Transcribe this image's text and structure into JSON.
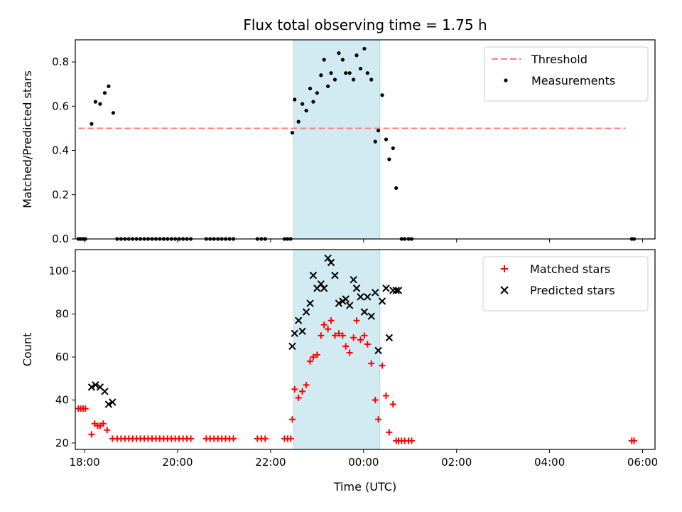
{
  "figure": {
    "title": "Flux total observing time = 1.75 h",
    "shade_color": "#add8e6"
  },
  "chart_data": [
    {
      "type": "scatter",
      "title": "Flux total observing time = 1.75 h",
      "ylabel": "Matched/Predicted stars",
      "xlabel": "",
      "xlim": [
        "17:48",
        "30:16"
      ],
      "ylim": [
        0,
        0.9
      ],
      "yticks": [
        0.0,
        0.2,
        0.4,
        0.6,
        0.8
      ],
      "ytick_labels": [
        "0.0",
        "0.2",
        "0.4",
        "0.6",
        "0.8"
      ],
      "shaded_span": [
        "22:30",
        "00:21"
      ],
      "legend_position": "top-right",
      "threshold": {
        "name": "Threshold",
        "value": 0.5,
        "x_range": [
          "17:52",
          "29:38"
        ],
        "color": "#ff7f7f",
        "style": "dashed"
      },
      "series": [
        {
          "name": "Measurements",
          "color": "#000000",
          "marker": "dot",
          "points": [
            [
              "17:52",
              0
            ],
            [
              "17:55",
              0
            ],
            [
              "17:58",
              0
            ],
            [
              "18:01",
              0
            ],
            [
              "18:09",
              0.52
            ],
            [
              "18:14",
              0.62
            ],
            [
              "18:20",
              0.61
            ],
            [
              "18:26",
              0.66
            ],
            [
              "18:31",
              0.69
            ],
            [
              "18:37",
              0.57
            ],
            [
              "18:42",
              0
            ],
            [
              "18:47",
              0
            ],
            [
              "18:52",
              0
            ],
            [
              "18:57",
              0
            ],
            [
              "19:02",
              0
            ],
            [
              "19:07",
              0
            ],
            [
              "19:12",
              0
            ],
            [
              "19:17",
              0
            ],
            [
              "19:22",
              0
            ],
            [
              "19:27",
              0
            ],
            [
              "19:32",
              0
            ],
            [
              "19:37",
              0
            ],
            [
              "19:42",
              0
            ],
            [
              "19:47",
              0
            ],
            [
              "19:52",
              0
            ],
            [
              "19:57",
              0
            ],
            [
              "20:02",
              0
            ],
            [
              "20:07",
              0
            ],
            [
              "20:12",
              0
            ],
            [
              "20:17",
              0
            ],
            [
              "20:37",
              0
            ],
            [
              "20:42",
              0
            ],
            [
              "20:47",
              0
            ],
            [
              "20:52",
              0
            ],
            [
              "20:57",
              0
            ],
            [
              "21:02",
              0
            ],
            [
              "21:07",
              0
            ],
            [
              "21:12",
              0
            ],
            [
              "21:43",
              0
            ],
            [
              "21:48",
              0
            ],
            [
              "21:53",
              0
            ],
            [
              "22:18",
              0
            ],
            [
              "22:22",
              0
            ],
            [
              "22:26",
              0
            ],
            [
              "22:28",
              0.48
            ],
            [
              "22:31",
              0.63
            ],
            [
              "22:36",
              0.53
            ],
            [
              "22:41",
              0.61
            ],
            [
              "22:46",
              0.58
            ],
            [
              "22:51",
              0.68
            ],
            [
              "22:55",
              0.62
            ],
            [
              "23:00",
              0.66
            ],
            [
              "23:05",
              0.74
            ],
            [
              "23:09",
              0.81
            ],
            [
              "23:14",
              0.69
            ],
            [
              "23:18",
              0.75
            ],
            [
              "23:23",
              0.72
            ],
            [
              "23:28",
              0.84
            ],
            [
              "23:33",
              0.81
            ],
            [
              "23:37",
              0.75
            ],
            [
              "23:42",
              0.75
            ],
            [
              "23:47",
              0.72
            ],
            [
              "23:51",
              0.83
            ],
            [
              "23:56",
              0.77
            ],
            [
              "00:01",
              0.86
            ],
            [
              "00:05",
              0.75
            ],
            [
              "00:10",
              0.72
            ],
            [
              "00:15",
              0.44
            ],
            [
              "00:19",
              0.49
            ],
            [
              "00:24",
              0.65
            ],
            [
              "00:29",
              0.45
            ],
            [
              "00:33",
              0.36
            ],
            [
              "00:38",
              0.41
            ],
            [
              "00:42",
              0.23
            ],
            [
              "00:49",
              0
            ],
            [
              "00:53",
              0
            ],
            [
              "00:58",
              0
            ],
            [
              "01:02",
              0
            ],
            [
              "05:46",
              0
            ],
            [
              "05:49",
              0
            ]
          ]
        }
      ]
    },
    {
      "type": "scatter",
      "title": "",
      "ylabel": "Count",
      "xlabel": "Time (UTC)",
      "xlim": [
        "17:48",
        "30:16"
      ],
      "ylim": [
        17,
        110
      ],
      "yticks": [
        20,
        40,
        60,
        80,
        100
      ],
      "ytick_labels": [
        "20",
        "40",
        "60",
        "80",
        "100"
      ],
      "xticks": [
        "18:00",
        "20:00",
        "22:00",
        "00:00",
        "02:00",
        "04:00",
        "06:00"
      ],
      "xtick_labels": [
        "18:00",
        "20:00",
        "22:00",
        "00:00",
        "02:00",
        "04:00",
        "06:00"
      ],
      "shaded_span": [
        "22:30",
        "00:21"
      ],
      "legend_position": "top-right",
      "series": [
        {
          "name": "Matched stars",
          "color": "#ff0000",
          "marker": "plus",
          "points": [
            [
              "17:52",
              36
            ],
            [
              "17:55",
              36
            ],
            [
              "17:58",
              36
            ],
            [
              "18:01",
              36
            ],
            [
              "18:09",
              24
            ],
            [
              "18:13",
              29
            ],
            [
              "18:17",
              28
            ],
            [
              "18:20",
              28
            ],
            [
              "18:24",
              29
            ],
            [
              "18:29",
              26
            ],
            [
              "18:36",
              22
            ],
            [
              "18:42",
              22
            ],
            [
              "18:47",
              22
            ],
            [
              "18:52",
              22
            ],
            [
              "18:57",
              22
            ],
            [
              "19:02",
              22
            ],
            [
              "19:07",
              22
            ],
            [
              "19:12",
              22
            ],
            [
              "19:17",
              22
            ],
            [
              "19:22",
              22
            ],
            [
              "19:27",
              22
            ],
            [
              "19:32",
              22
            ],
            [
              "19:37",
              22
            ],
            [
              "19:42",
              22
            ],
            [
              "19:47",
              22
            ],
            [
              "19:52",
              22
            ],
            [
              "19:57",
              22
            ],
            [
              "20:02",
              22
            ],
            [
              "20:07",
              22
            ],
            [
              "20:12",
              22
            ],
            [
              "20:17",
              22
            ],
            [
              "20:37",
              22
            ],
            [
              "20:42",
              22
            ],
            [
              "20:47",
              22
            ],
            [
              "20:52",
              22
            ],
            [
              "20:57",
              22
            ],
            [
              "21:02",
              22
            ],
            [
              "21:07",
              22
            ],
            [
              "21:12",
              22
            ],
            [
              "21:43",
              22
            ],
            [
              "21:48",
              22
            ],
            [
              "21:53",
              22
            ],
            [
              "22:18",
              22
            ],
            [
              "22:22",
              22
            ],
            [
              "22:26",
              22
            ],
            [
              "22:28",
              31
            ],
            [
              "22:31",
              45
            ],
            [
              "22:36",
              41
            ],
            [
              "22:41",
              44
            ],
            [
              "22:46",
              47
            ],
            [
              "22:51",
              58
            ],
            [
              "22:55",
              60
            ],
            [
              "23:00",
              61
            ],
            [
              "23:05",
              70
            ],
            [
              "23:09",
              75
            ],
            [
              "23:14",
              73
            ],
            [
              "23:18",
              77
            ],
            [
              "23:23",
              70
            ],
            [
              "23:28",
              71
            ],
            [
              "23:33",
              70
            ],
            [
              "23:37",
              65
            ],
            [
              "23:42",
              62
            ],
            [
              "23:47",
              69
            ],
            [
              "23:51",
              77
            ],
            [
              "23:56",
              68
            ],
            [
              "00:01",
              70
            ],
            [
              "00:05",
              66
            ],
            [
              "00:10",
              57
            ],
            [
              "00:15",
              40
            ],
            [
              "00:19",
              31
            ],
            [
              "00:24",
              56
            ],
            [
              "00:29",
              42
            ],
            [
              "00:33",
              25
            ],
            [
              "00:38",
              38
            ],
            [
              "00:42",
              21
            ],
            [
              "00:45",
              21
            ],
            [
              "00:49",
              21
            ],
            [
              "00:53",
              21
            ],
            [
              "00:58",
              21
            ],
            [
              "01:02",
              21
            ],
            [
              "05:46",
              21
            ],
            [
              "05:49",
              21
            ]
          ]
        },
        {
          "name": "Predicted stars",
          "color": "#000000",
          "marker": "x",
          "points": [
            [
              "18:09",
              46
            ],
            [
              "18:14",
              47
            ],
            [
              "18:20",
              46
            ],
            [
              "18:26",
              44
            ],
            [
              "18:31",
              38
            ],
            [
              "18:36",
              39
            ],
            [
              "22:28",
              65
            ],
            [
              "22:31",
              71
            ],
            [
              "22:36",
              77
            ],
            [
              "22:41",
              72
            ],
            [
              "22:46",
              81
            ],
            [
              "22:51",
              85
            ],
            [
              "22:55",
              98
            ],
            [
              "23:00",
              92
            ],
            [
              "23:05",
              94
            ],
            [
              "23:09",
              92
            ],
            [
              "23:14",
              106
            ],
            [
              "23:18",
              104
            ],
            [
              "23:23",
              98
            ],
            [
              "23:28",
              85
            ],
            [
              "23:33",
              86
            ],
            [
              "23:37",
              87
            ],
            [
              "23:42",
              84
            ],
            [
              "23:47",
              96
            ],
            [
              "23:51",
              92
            ],
            [
              "23:56",
              88
            ],
            [
              "00:01",
              81
            ],
            [
              "00:05",
              88
            ],
            [
              "00:10",
              79
            ],
            [
              "00:15",
              90
            ],
            [
              "00:19",
              63
            ],
            [
              "00:24",
              86
            ],
            [
              "00:29",
              92
            ],
            [
              "00:33",
              69
            ],
            [
              "00:38",
              91
            ],
            [
              "00:42",
              91
            ],
            [
              "00:45",
              91
            ]
          ]
        }
      ]
    }
  ]
}
